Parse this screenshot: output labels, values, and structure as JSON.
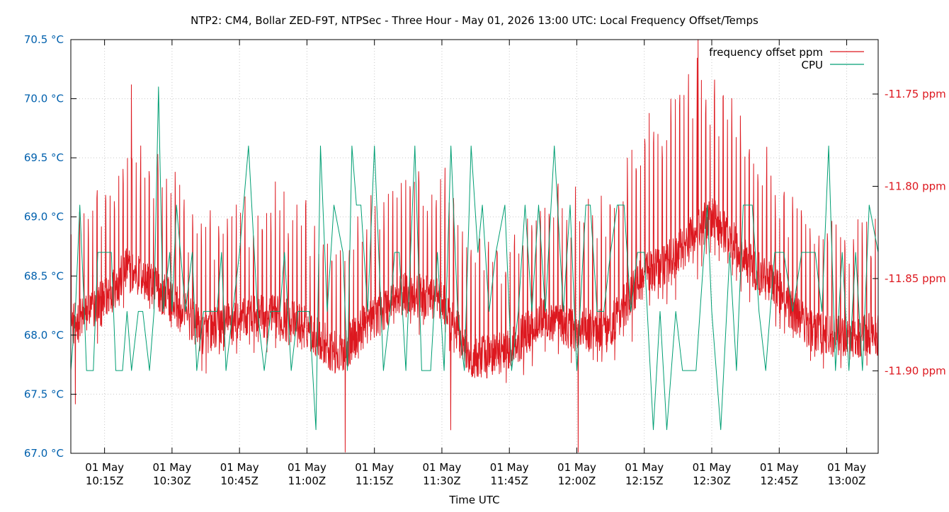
{
  "chart_data": {
    "type": "line",
    "title": "NTP2: CM4, Bollar ZED-F9T, NTPSec - Three Hour - May 01, 2026 13:00 UTC: Local Frequency Offset/Temps",
    "xlabel": "Time UTC",
    "x_range": [
      "2026-05-01T10:07:30Z",
      "2026-05-01T13:07:00Z"
    ],
    "x_ticks": [
      {
        "time": "2026-05-01T10:15:00Z",
        "line1": "01 May",
        "line2": "10:15Z"
      },
      {
        "time": "2026-05-01T10:30:00Z",
        "line1": "01 May",
        "line2": "10:30Z"
      },
      {
        "time": "2026-05-01T10:45:00Z",
        "line1": "01 May",
        "line2": "10:45Z"
      },
      {
        "time": "2026-05-01T11:00:00Z",
        "line1": "01 May",
        "line2": "11:00Z"
      },
      {
        "time": "2026-05-01T11:15:00Z",
        "line1": "01 May",
        "line2": "11:15Z"
      },
      {
        "time": "2026-05-01T11:30:00Z",
        "line1": "01 May",
        "line2": "11:30Z"
      },
      {
        "time": "2026-05-01T11:45:00Z",
        "line1": "01 May",
        "line2": "11:45Z"
      },
      {
        "time": "2026-05-01T12:00:00Z",
        "line1": "01 May",
        "line2": "12:00Z"
      },
      {
        "time": "2026-05-01T12:15:00Z",
        "line1": "01 May",
        "line2": "12:15Z"
      },
      {
        "time": "2026-05-01T12:30:00Z",
        "line1": "01 May",
        "line2": "12:30Z"
      },
      {
        "time": "2026-05-01T12:45:00Z",
        "line1": "01 May",
        "line2": "12:45Z"
      },
      {
        "time": "2026-05-01T13:00:00Z",
        "line1": "01 May",
        "line2": "13:00Z"
      }
    ],
    "y_left": {
      "range": [
        67.0,
        70.5
      ],
      "ticks": [
        67.0,
        67.5,
        68.0,
        68.5,
        69.0,
        69.5,
        70.0,
        70.5
      ],
      "tick_labels": [
        "67.0 °C",
        "67.5 °C",
        "68.0 °C",
        "68.5 °C",
        "69.0 °C",
        "69.5 °C",
        "70.0 °C",
        "70.5 °C"
      ],
      "color": "#0060ad"
    },
    "y_right": {
      "range": [
        -11.9447,
        -11.7205
      ],
      "ticks": [
        -11.75,
        -11.8,
        -11.85,
        -11.9
      ],
      "tick_labels": [
        "-11.75 ppm",
        "-11.80 ppm",
        "-11.85 ppm",
        "-11.90 ppm"
      ],
      "color": "#dd181f"
    },
    "grid": true,
    "legend_position": "top-right",
    "series": [
      {
        "name": "frequency offset ppm",
        "axis": "right",
        "color": "#dd181f",
        "unit": "ppm",
        "sample_interval_s": 4,
        "baseline_anchors": [
          {
            "time": "2026-05-01T10:07:30Z",
            "value": -11.876
          },
          {
            "time": "2026-05-01T10:15:00Z",
            "value": -11.862
          },
          {
            "time": "2026-05-01T10:20:00Z",
            "value": -11.845
          },
          {
            "time": "2026-05-01T10:25:00Z",
            "value": -11.852
          },
          {
            "time": "2026-05-01T10:30:00Z",
            "value": -11.862
          },
          {
            "time": "2026-05-01T10:37:00Z",
            "value": -11.88
          },
          {
            "time": "2026-05-01T10:45:00Z",
            "value": -11.872
          },
          {
            "time": "2026-05-01T10:52:00Z",
            "value": -11.87
          },
          {
            "time": "2026-05-01T11:00:00Z",
            "value": -11.876
          },
          {
            "time": "2026-05-01T11:07:00Z",
            "value": -11.892
          },
          {
            "time": "2026-05-01T11:15:00Z",
            "value": -11.87
          },
          {
            "time": "2026-05-01T11:22:00Z",
            "value": -11.858
          },
          {
            "time": "2026-05-01T11:30:00Z",
            "value": -11.862
          },
          {
            "time": "2026-05-01T11:37:00Z",
            "value": -11.895
          },
          {
            "time": "2026-05-01T11:45:00Z",
            "value": -11.888
          },
          {
            "time": "2026-05-01T11:52:00Z",
            "value": -11.872
          },
          {
            "time": "2026-05-01T12:00:00Z",
            "value": -11.878
          },
          {
            "time": "2026-05-01T12:07:00Z",
            "value": -11.878
          },
          {
            "time": "2026-05-01T12:15:00Z",
            "value": -11.848
          },
          {
            "time": "2026-05-01T12:22:00Z",
            "value": -11.838
          },
          {
            "time": "2026-05-01T12:30:00Z",
            "value": -11.815
          },
          {
            "time": "2026-05-01T12:37:00Z",
            "value": -11.838
          },
          {
            "time": "2026-05-01T12:45:00Z",
            "value": -11.858
          },
          {
            "time": "2026-05-01T12:52:00Z",
            "value": -11.878
          },
          {
            "time": "2026-05-01T13:00:00Z",
            "value": -11.882
          },
          {
            "time": "2026-05-01T13:07:00Z",
            "value": -11.88
          }
        ],
        "spike_period_s": 58,
        "spike_height_ppm": 0.055,
        "spike_height_anchors": [
          {
            "time": "2026-05-01T10:07:30Z",
            "value": 0.05
          },
          {
            "time": "2026-05-01T10:22:00Z",
            "value": 0.065
          },
          {
            "time": "2026-05-01T10:45:00Z",
            "value": 0.055
          },
          {
            "time": "2026-05-01T11:20:00Z",
            "value": 0.06
          },
          {
            "time": "2026-05-01T11:45:00Z",
            "value": 0.055
          },
          {
            "time": "2026-05-01T12:25:00Z",
            "value": 0.08
          },
          {
            "time": "2026-05-01T12:45:00Z",
            "value": 0.055
          },
          {
            "time": "2026-05-01T13:07:00Z",
            "value": 0.055
          }
        ],
        "noise_ppm": 0.012,
        "extremes": [
          {
            "time": "2026-05-01T12:27:00Z",
            "value": -11.7205
          },
          {
            "time": "2026-05-01T10:21:00Z",
            "value": -11.745
          },
          {
            "time": "2026-05-01T11:08:30Z",
            "value": -11.944
          },
          {
            "time": "2026-05-01T12:00:20Z",
            "value": -11.944
          },
          {
            "time": "2026-05-01T10:08:30Z",
            "value": -11.918
          },
          {
            "time": "2026-05-01T11:32:00Z",
            "value": -11.932
          }
        ]
      },
      {
        "name": "CPU",
        "axis": "left",
        "color": "#009e73",
        "unit": "°C",
        "points": [
          [
            "2026-05-01T10:07:30Z",
            67.7
          ],
          [
            "2026-05-01T10:08:30Z",
            68.2
          ],
          [
            "2026-05-01T10:09:30Z",
            69.1
          ],
          [
            "2026-05-01T10:10:30Z",
            68.2
          ],
          [
            "2026-05-01T10:11:00Z",
            67.7
          ],
          [
            "2026-05-01T10:12:30Z",
            67.7
          ],
          [
            "2026-05-01T10:13:30Z",
            68.7
          ],
          [
            "2026-05-01T10:16:30Z",
            68.7
          ],
          [
            "2026-05-01T10:17:30Z",
            67.7
          ],
          [
            "2026-05-01T10:19:00Z",
            67.7
          ],
          [
            "2026-05-01T10:20:00Z",
            68.2
          ],
          [
            "2026-05-01T10:21:00Z",
            67.7
          ],
          [
            "2026-05-01T10:22:30Z",
            68.2
          ],
          [
            "2026-05-01T10:23:30Z",
            68.2
          ],
          [
            "2026-05-01T10:25:00Z",
            67.7
          ],
          [
            "2026-05-01T10:26:00Z",
            68.2
          ],
          [
            "2026-05-01T10:27:00Z",
            70.1
          ],
          [
            "2026-05-01T10:28:00Z",
            68.2
          ],
          [
            "2026-05-01T10:29:30Z",
            68.7
          ],
          [
            "2026-05-01T10:30:00Z",
            68.2
          ],
          [
            "2026-05-01T10:31:00Z",
            69.1
          ],
          [
            "2026-05-01T10:33:00Z",
            68.2
          ],
          [
            "2026-05-01T10:34:30Z",
            68.7
          ],
          [
            "2026-05-01T10:35:30Z",
            67.7
          ],
          [
            "2026-05-01T10:37:00Z",
            68.2
          ],
          [
            "2026-05-01T10:40:00Z",
            68.2
          ],
          [
            "2026-05-01T10:41:00Z",
            68.7
          ],
          [
            "2026-05-01T10:42:00Z",
            67.7
          ],
          [
            "2026-05-01T10:45:00Z",
            68.7
          ],
          [
            "2026-05-01T10:47:00Z",
            69.6
          ],
          [
            "2026-05-01T10:49:00Z",
            68.2
          ],
          [
            "2026-05-01T10:50:30Z",
            67.7
          ],
          [
            "2026-05-01T10:52:00Z",
            68.2
          ],
          [
            "2026-05-01T10:54:00Z",
            68.2
          ],
          [
            "2026-05-01T10:55:00Z",
            68.7
          ],
          [
            "2026-05-01T10:56:30Z",
            67.7
          ],
          [
            "2026-05-01T10:58:00Z",
            68.2
          ],
          [
            "2026-05-01T11:00:30Z",
            68.2
          ],
          [
            "2026-05-01T11:02:00Z",
            67.2
          ],
          [
            "2026-05-01T11:03:00Z",
            69.6
          ],
          [
            "2026-05-01T11:04:30Z",
            68.2
          ],
          [
            "2026-05-01T11:06:00Z",
            69.1
          ],
          [
            "2026-05-01T11:08:00Z",
            68.7
          ],
          [
            "2026-05-01T11:09:00Z",
            67.7
          ],
          [
            "2026-05-01T11:10:00Z",
            69.6
          ],
          [
            "2026-05-01T11:11:00Z",
            69.1
          ],
          [
            "2026-05-01T11:12:00Z",
            69.1
          ],
          [
            "2026-05-01T11:13:30Z",
            68.2
          ],
          [
            "2026-05-01T11:15:00Z",
            69.6
          ],
          [
            "2026-05-01T11:17:00Z",
            67.7
          ],
          [
            "2026-05-01T11:18:30Z",
            68.2
          ],
          [
            "2026-05-01T11:19:30Z",
            68.7
          ],
          [
            "2026-05-01T11:20:30Z",
            68.7
          ],
          [
            "2026-05-01T11:22:00Z",
            67.7
          ],
          [
            "2026-05-01T11:24:00Z",
            69.6
          ],
          [
            "2026-05-01T11:25:30Z",
            67.7
          ],
          [
            "2026-05-01T11:27:30Z",
            67.7
          ],
          [
            "2026-05-01T11:29:00Z",
            68.7
          ],
          [
            "2026-05-01T11:30:30Z",
            67.7
          ],
          [
            "2026-05-01T11:32:00Z",
            69.6
          ],
          [
            "2026-05-01T11:33:30Z",
            68.2
          ],
          [
            "2026-05-01T11:35:00Z",
            67.7
          ],
          [
            "2026-05-01T11:36:30Z",
            69.6
          ],
          [
            "2026-05-01T11:38:00Z",
            68.7
          ],
          [
            "2026-05-01T11:39:00Z",
            69.1
          ],
          [
            "2026-05-01T11:40:30Z",
            68.2
          ],
          [
            "2026-05-01T11:42:00Z",
            68.7
          ],
          [
            "2026-05-01T11:44:00Z",
            69.1
          ],
          [
            "2026-05-01T11:45:30Z",
            67.7
          ],
          [
            "2026-05-01T11:47:00Z",
            68.2
          ],
          [
            "2026-05-01T11:48:30Z",
            69.1
          ],
          [
            "2026-05-01T11:50:00Z",
            68.2
          ],
          [
            "2026-05-01T11:51:30Z",
            69.1
          ],
          [
            "2026-05-01T11:53:00Z",
            68.2
          ],
          [
            "2026-05-01T11:55:00Z",
            69.6
          ],
          [
            "2026-05-01T11:57:00Z",
            68.2
          ],
          [
            "2026-05-01T11:58:30Z",
            69.1
          ],
          [
            "2026-05-01T12:00:00Z",
            67.7
          ],
          [
            "2026-05-01T12:02:00Z",
            69.1
          ],
          [
            "2026-05-01T12:03:00Z",
            69.1
          ],
          [
            "2026-05-01T12:04:30Z",
            68.2
          ],
          [
            "2026-05-01T12:06:00Z",
            68.2
          ],
          [
            "2026-05-01T12:07:30Z",
            68.7
          ],
          [
            "2026-05-01T12:09:00Z",
            69.1
          ],
          [
            "2026-05-01T12:10:30Z",
            69.1
          ],
          [
            "2026-05-01T12:12:00Z",
            68.2
          ],
          [
            "2026-05-01T12:13:30Z",
            68.7
          ],
          [
            "2026-05-01T12:15:00Z",
            68.7
          ],
          [
            "2026-05-01T12:17:00Z",
            67.2
          ],
          [
            "2026-05-01T12:18:30Z",
            68.2
          ],
          [
            "2026-05-01T12:20:00Z",
            67.2
          ],
          [
            "2026-05-01T12:22:00Z",
            68.2
          ],
          [
            "2026-05-01T12:23:30Z",
            67.7
          ],
          [
            "2026-05-01T12:26:30Z",
            67.7
          ],
          [
            "2026-05-01T12:29:00Z",
            69.1
          ],
          [
            "2026-05-01T12:30:00Z",
            68.2
          ],
          [
            "2026-05-01T12:32:00Z",
            67.2
          ],
          [
            "2026-05-01T12:34:00Z",
            68.7
          ],
          [
            "2026-05-01T12:35:30Z",
            67.7
          ],
          [
            "2026-05-01T12:37:00Z",
            69.1
          ],
          [
            "2026-05-01T12:39:00Z",
            69.1
          ],
          [
            "2026-05-01T12:40:30Z",
            68.2
          ],
          [
            "2026-05-01T12:42:00Z",
            67.7
          ],
          [
            "2026-05-01T12:44:00Z",
            68.7
          ],
          [
            "2026-05-01T12:46:00Z",
            68.7
          ],
          [
            "2026-05-01T12:48:00Z",
            68.2
          ],
          [
            "2026-05-01T12:50:00Z",
            68.7
          ],
          [
            "2026-05-01T12:53:00Z",
            68.7
          ],
          [
            "2026-05-01T12:54:30Z",
            68.2
          ],
          [
            "2026-05-01T12:56:00Z",
            69.6
          ],
          [
            "2026-05-01T12:57:30Z",
            67.7
          ],
          [
            "2026-05-01T12:59:00Z",
            68.7
          ],
          [
            "2026-05-01T13:00:30Z",
            67.7
          ],
          [
            "2026-05-01T13:02:00Z",
            68.7
          ],
          [
            "2026-05-01T13:03:30Z",
            67.7
          ],
          [
            "2026-05-01T13:05:00Z",
            69.1
          ],
          [
            "2026-05-01T13:07:00Z",
            68.7
          ]
        ]
      }
    ]
  }
}
